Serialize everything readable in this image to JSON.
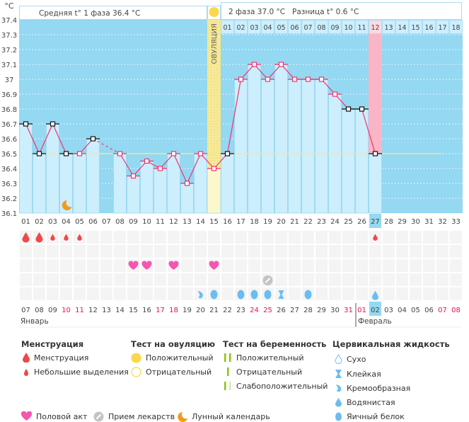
{
  "colors": {
    "bg_dark": "#94d8f2",
    "bar": "#cdeefc",
    "line": "#f0326e",
    "coverline": "#f5e98a",
    "ovulation": "#f5e68c",
    "period_day": "#f9b5c6",
    "weekend": "#e8154f",
    "menstruation": "#f04848",
    "heart": "#f556b0",
    "pill": "#c4c4c4",
    "cervical": "#6bbdf0",
    "moon": "#f39a1c",
    "test": "#8fc21a"
  },
  "header": {
    "unit": "°C",
    "phase1": "Средняя t° 1 фаза 36.4 °C",
    "phase2": "2 фаза 37.0 °C",
    "difference": "Разница t° 0.6 °C",
    "ovulation_label": "ОВУЛЯЦИЯ"
  },
  "chart_data": {
    "type": "line",
    "title": "",
    "ylabel": "°C",
    "ylim": [
      36.1,
      37.4
    ],
    "yticks": [
      "37.4",
      "37.3",
      "37.2",
      "37.1",
      "37",
      "36.9",
      "36.8",
      "36.7",
      "36.6",
      "36.5",
      "36.4",
      "36.3",
      "36.2",
      "36.1"
    ],
    "cycle_days": [
      "01",
      "02",
      "03",
      "04",
      "05",
      "06",
      "07",
      "08",
      "09",
      "10",
      "11",
      "12",
      "13",
      "14",
      "15",
      "16",
      "17",
      "18",
      "19",
      "20",
      "21",
      "22",
      "23",
      "24",
      "25",
      "26",
      "27",
      "28",
      "29",
      "30",
      "31",
      "32",
      "33"
    ],
    "phase2_days": [
      "01",
      "02",
      "03",
      "04",
      "05",
      "06",
      "07",
      "08",
      "09",
      "10",
      "11",
      "12",
      "13",
      "14",
      "15",
      "16",
      "17",
      "18"
    ],
    "temperatures": [
      36.7,
      36.5,
      36.7,
      36.5,
      36.5,
      36.6,
      null,
      36.5,
      36.35,
      36.45,
      36.4,
      36.5,
      36.3,
      36.5,
      36.4,
      36.5,
      37.0,
      37.1,
      37.0,
      37.1,
      37.0,
      37.0,
      37.0,
      36.9,
      36.8,
      36.8,
      36.5
    ],
    "excluded_points": [
      1,
      2,
      3,
      4,
      6,
      16,
      25,
      26,
      27
    ],
    "coverline": 36.5,
    "ovulation_day": 15,
    "current_day": 27,
    "calendar_dates": [
      "07",
      "08",
      "09",
      "10",
      "11",
      "12",
      "13",
      "14",
      "15",
      "16",
      "17",
      "18",
      "19",
      "20",
      "21",
      "22",
      "23",
      "24",
      "25",
      "26",
      "27",
      "28",
      "29",
      "30",
      "31",
      "01",
      "02",
      "03",
      "04",
      "05",
      "06",
      "07",
      "08"
    ],
    "weekend_dates_index": [
      3,
      4,
      10,
      11,
      17,
      18,
      24,
      25,
      31,
      32
    ],
    "months": [
      "Январь",
      "Февраль"
    ],
    "markers": {
      "menstruation_heavy": [
        1,
        2
      ],
      "menstruation_light": [
        3,
        4,
        5,
        27
      ],
      "intercourse": [
        9,
        10,
        12,
        15
      ],
      "medication": [
        19
      ],
      "moon": [
        4
      ],
      "cervical": [
        {
          "day": 14,
          "type": "creamy"
        },
        {
          "day": 15,
          "type": "eggwhite"
        },
        {
          "day": 17,
          "type": "eggwhite"
        },
        {
          "day": 18,
          "type": "eggwhite"
        },
        {
          "day": 19,
          "type": "eggwhite"
        },
        {
          "day": 20,
          "type": "sticky"
        },
        {
          "day": 22,
          "type": "eggwhite"
        },
        {
          "day": 27,
          "type": "watery"
        }
      ]
    }
  },
  "legend": {
    "menstruation": {
      "title": "Менструация",
      "items": [
        "Менструация",
        "Небольшие выделения"
      ]
    },
    "ovulation_test": {
      "title": "Тест на овуляцию",
      "items": [
        "Положительный",
        "Отрицательный"
      ]
    },
    "pregnancy_test": {
      "title": "Тест на беременность",
      "items": [
        "Положительный",
        "Отрицательный",
        "Слабоположительный"
      ]
    },
    "cervical": {
      "title": "Цервикальная жидкость",
      "items": [
        "Сухо",
        "Клейкая",
        "Кремообразная",
        "Водянистая",
        "Яичный белок"
      ]
    },
    "other": [
      "Половой акт",
      "Прием лекарств",
      "Лунный календарь"
    ]
  }
}
